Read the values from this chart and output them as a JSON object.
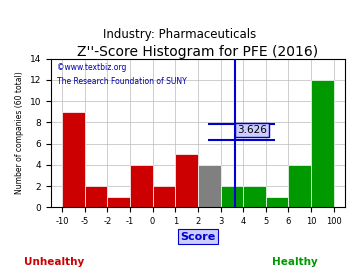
{
  "title": "Z''-Score Histogram for PFE (2016)",
  "subtitle": "Industry: Pharmaceuticals",
  "watermark1": "©www.textbiz.org",
  "watermark2": "The Research Foundation of SUNY",
  "xlabel": "Score",
  "ylabel": "Number of companies (60 total)",
  "tick_labels": [
    "-10",
    "-5",
    "-2",
    "-1",
    "0",
    "1",
    "2",
    "3",
    "4",
    "5",
    "6",
    "10",
    "100"
  ],
  "heights": [
    9,
    2,
    1,
    4,
    2,
    5,
    4,
    2,
    2,
    1,
    4,
    12
  ],
  "colors": [
    "#cc0000",
    "#cc0000",
    "#cc0000",
    "#cc0000",
    "#cc0000",
    "#cc0000",
    "#808080",
    "#009900",
    "#009900",
    "#009900",
    "#009900",
    "#009900"
  ],
  "pfe_score_bin": 3.626,
  "pfe_label": "3.626",
  "vline_color": "#0000cc",
  "hline_color": "#0000cc",
  "ylim": [
    0,
    14
  ],
  "yticks": [
    0,
    2,
    4,
    6,
    8,
    10,
    12,
    14
  ],
  "background_color": "#ffffff",
  "title_fontsize": 10,
  "subtitle_fontsize": 8.5,
  "unhealthy_color": "#cc0000",
  "healthy_color": "#009900",
  "score_box_color": "#0000cc"
}
